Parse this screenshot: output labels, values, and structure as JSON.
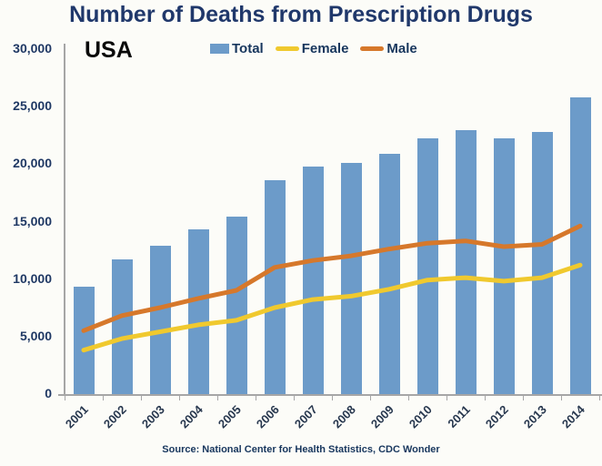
{
  "header": {
    "title": "Number of Deaths from Prescription Drugs"
  },
  "chart": {
    "region_label": "USA",
    "source": "Source: National Center for Health Statistics, CDC Wonder"
  },
  "colors": {
    "title_text": "#20386B",
    "axis_text": "#1F3864",
    "axis_line": "#A6A6A6",
    "bar_blue": "#6C9BC9",
    "female_yellow": "#F0C92E",
    "male_orange": "#D6782B",
    "background": "#FCFCF8"
  },
  "chart_data": {
    "type": "bar",
    "subtype": "combo-bar-line",
    "title": "Number of Deaths from Prescription Drugs",
    "annotation": "USA",
    "categories": [
      "2001",
      "2002",
      "2003",
      "2004",
      "2005",
      "2006",
      "2007",
      "2008",
      "2009",
      "2010",
      "2011",
      "2012",
      "2013",
      "2014"
    ],
    "series": [
      {
        "name": "Total",
        "render": "bar",
        "color": "#6C9BC9",
        "values": [
          9400,
          11800,
          13000,
          14400,
          15500,
          18700,
          19900,
          20200,
          21000,
          22300,
          23000,
          22300,
          22900,
          25900
        ]
      },
      {
        "name": "Female",
        "render": "line",
        "color": "#F0C92E",
        "values": [
          3900,
          4900,
          5500,
          6100,
          6500,
          7600,
          8300,
          8600,
          9200,
          10000,
          10200,
          9900,
          10200,
          11300
        ]
      },
      {
        "name": "Male",
        "render": "line",
        "color": "#D6782B",
        "values": [
          5600,
          6900,
          7600,
          8400,
          9100,
          11100,
          11700,
          12100,
          12700,
          13200,
          13400,
          12900,
          13100,
          14700
        ]
      }
    ],
    "xlabel": "",
    "ylabel": "",
    "ylim": [
      0,
      30000
    ],
    "yticks": [
      0,
      5000,
      10000,
      15000,
      20000,
      25000,
      30000
    ],
    "grid": false,
    "legend_position": "top-center",
    "source": "Source: National Center for Health Statistics, CDC Wonder"
  }
}
